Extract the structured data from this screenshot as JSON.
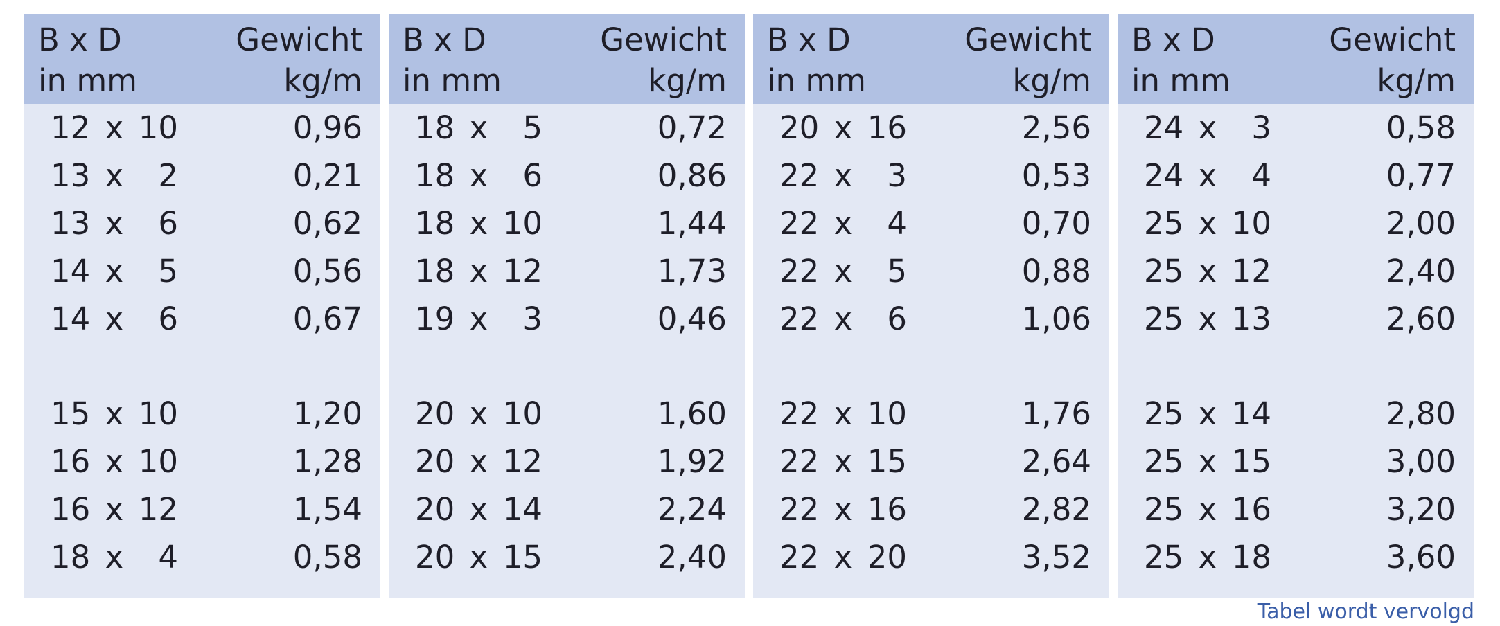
{
  "headers": {
    "dims_line1": "B x D",
    "dims_line2": "in mm",
    "weight_line1": "Gewicht",
    "weight_line2": "kg/m"
  },
  "multiply_sign": "x",
  "blocks": [
    {
      "rows": [
        {
          "b": "12",
          "d": "10",
          "w": "0,96"
        },
        {
          "b": "13",
          "d": "2",
          "w": "0,21"
        },
        {
          "b": "13",
          "d": "6",
          "w": "0,62"
        },
        {
          "b": "14",
          "d": "5",
          "w": "0,56"
        },
        {
          "b": "14",
          "d": "6",
          "w": "0,67"
        },
        {
          "b": "15",
          "d": "10",
          "w": "1,20"
        },
        {
          "b": "16",
          "d": "10",
          "w": "1,28"
        },
        {
          "b": "16",
          "d": "12",
          "w": "1,54"
        },
        {
          "b": "18",
          "d": "4",
          "w": "0,58"
        }
      ]
    },
    {
      "rows": [
        {
          "b": "18",
          "d": "5",
          "w": "0,72"
        },
        {
          "b": "18",
          "d": "6",
          "w": "0,86"
        },
        {
          "b": "18",
          "d": "10",
          "w": "1,44"
        },
        {
          "b": "18",
          "d": "12",
          "w": "1,73"
        },
        {
          "b": "19",
          "d": "3",
          "w": "0,46"
        },
        {
          "b": "20",
          "d": "10",
          "w": "1,60"
        },
        {
          "b": "20",
          "d": "12",
          "w": "1,92"
        },
        {
          "b": "20",
          "d": "14",
          "w": "2,24"
        },
        {
          "b": "20",
          "d": "15",
          "w": "2,40"
        }
      ]
    },
    {
      "rows": [
        {
          "b": "20",
          "d": "16",
          "w": "2,56"
        },
        {
          "b": "22",
          "d": "3",
          "w": "0,53"
        },
        {
          "b": "22",
          "d": "4",
          "w": "0,70"
        },
        {
          "b": "22",
          "d": "5",
          "w": "0,88"
        },
        {
          "b": "22",
          "d": "6",
          "w": "1,06"
        },
        {
          "b": "22",
          "d": "10",
          "w": "1,76"
        },
        {
          "b": "22",
          "d": "15",
          "w": "2,64"
        },
        {
          "b": "22",
          "d": "16",
          "w": "2,82"
        },
        {
          "b": "22",
          "d": "20",
          "w": "3,52"
        }
      ]
    },
    {
      "rows": [
        {
          "b": "24",
          "d": "3",
          "w": "0,58"
        },
        {
          "b": "24",
          "d": "4",
          "w": "0,77"
        },
        {
          "b": "25",
          "d": "10",
          "w": "2,00"
        },
        {
          "b": "25",
          "d": "12",
          "w": "2,40"
        },
        {
          "b": "25",
          "d": "13",
          "w": "2,60"
        },
        {
          "b": "25",
          "d": "14",
          "w": "2,80"
        },
        {
          "b": "25",
          "d": "15",
          "w": "3,00"
        },
        {
          "b": "25",
          "d": "16",
          "w": "3,20"
        },
        {
          "b": "25",
          "d": "18",
          "w": "3,60"
        }
      ]
    }
  ],
  "footer_note": "Tabel wordt vervolgd"
}
